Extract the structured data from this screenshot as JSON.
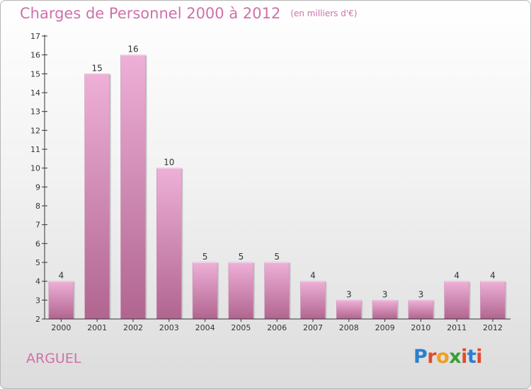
{
  "header": {
    "title": "Charges de Personnel 2000 à 2012",
    "unit": "(en milliers d'€)"
  },
  "footer": {
    "commune": "ARGUEL"
  },
  "logo": {
    "text": "Proxiti",
    "letter_colors": [
      "#2b7fd0",
      "#e24a2c",
      "#f0a020",
      "#3aa035",
      "#e24a2c",
      "#2b7fd0",
      "#e24a2c"
    ]
  },
  "colors": {
    "bar_light": "#eeb0d8",
    "bar_dark": "#b0658f",
    "label_pink": "#d070a8",
    "axis": "#333333"
  },
  "chart_data": {
    "type": "bar",
    "title": "Charges de Personnel 2000 à 2012",
    "subtitle": "(en milliers d'€)",
    "xlabel": "",
    "ylabel": "",
    "categories": [
      "2000",
      "2001",
      "2002",
      "2003",
      "2004",
      "2005",
      "2006",
      "2007",
      "2008",
      "2009",
      "2010",
      "2011",
      "2012"
    ],
    "values": [
      4,
      15,
      16,
      10,
      5,
      5,
      5,
      4,
      3,
      3,
      3,
      4,
      4
    ],
    "ylim": [
      2,
      17
    ],
    "yticks": [
      2,
      3,
      4,
      5,
      6,
      7,
      8,
      9,
      10,
      11,
      12,
      13,
      14,
      15,
      16,
      17
    ],
    "grid": false,
    "legend": "none"
  }
}
